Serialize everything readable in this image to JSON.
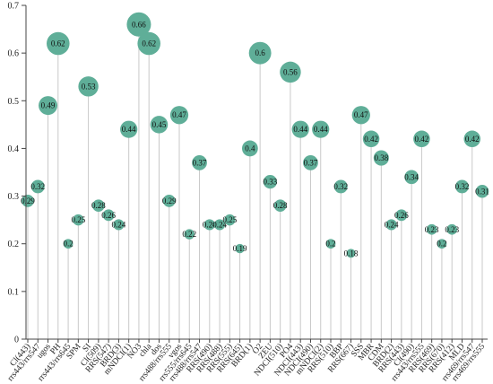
{
  "chart_data": {
    "type": "lollipop",
    "y_ticks": [
      "0",
      "0.1",
      "0.2",
      "0.3",
      "0.4",
      "0.5",
      "0.6",
      "0.7"
    ],
    "ylim": [
      0,
      0.7
    ],
    "grid": false,
    "marker_color": "#5fae98",
    "categories": [
      "Cl(443)",
      "rrs443/rrs547",
      "ugos",
      "PH",
      "rrs443/rrs645",
      "SPM",
      "SI",
      "Cl(509)",
      "RRS(547)",
      "BRD(3)",
      "mNDCI(1)",
      "NO3",
      "chla",
      "dos",
      "rrs488/rrs555",
      "vgos",
      "rrs555/rrs645",
      "rrs488/rrs547",
      "RRS(490)",
      "RRS(488)",
      "RRS(555)",
      "RRS(645)",
      "BRD(1)",
      "O2",
      "ZEU",
      "NDCI(510)",
      "PO4",
      "NDCI(443)",
      "NDCI(490)",
      "mNDCI(2)",
      "RRS(510)",
      "BBP",
      "RRS(667)",
      "SSS",
      "MBR",
      "CDM",
      "BRD(2)",
      "RRS(443)",
      "Cl(490)",
      "rrs443/rrs555",
      "RRS(469)",
      "RRS(670)",
      "RRS(412)",
      "MLD",
      "rrs469/rrs547",
      "rrs469/rrs555"
    ],
    "values": [
      0.29,
      0.32,
      0.49,
      0.62,
      0.2,
      0.25,
      0.53,
      0.28,
      0.26,
      0.24,
      0.44,
      0.66,
      0.62,
      0.45,
      0.29,
      0.47,
      0.22,
      0.37,
      0.24,
      0.24,
      0.25,
      0.19,
      0.4,
      0.6,
      0.33,
      0.28,
      0.56,
      0.44,
      0.37,
      0.44,
      0.2,
      0.32,
      0.18,
      0.47,
      0.42,
      0.38,
      0.24,
      0.26,
      0.34,
      0.42,
      0.23,
      0.2,
      0.23,
      0.32,
      0.42,
      0.31
    ],
    "value_labels": [
      "0.29",
      "0.32",
      "0.49",
      "0.62",
      "0.2",
      "0.25",
      "0.53",
      "0.28",
      "0.26",
      "0.24",
      "0.44",
      "0.66",
      "0.62",
      "0.45",
      "0.29",
      "0.47",
      "0.22",
      "0.37",
      "0.24",
      "0.24",
      "0.25",
      "0.19",
      "0.4",
      "0.6",
      "0.33",
      "0.28",
      "0.56",
      "0.44",
      "0.37",
      "0.44",
      "0.2",
      "0.32",
      "0.18",
      "0.47",
      "0.42",
      "0.38",
      "0.24",
      "0.26",
      "0.34",
      "0.42",
      "0.23",
      "0.2",
      "0.23",
      "0.32",
      "0.42",
      "0.31"
    ],
    "title": "",
    "xlabel": "",
    "ylabel": ""
  }
}
